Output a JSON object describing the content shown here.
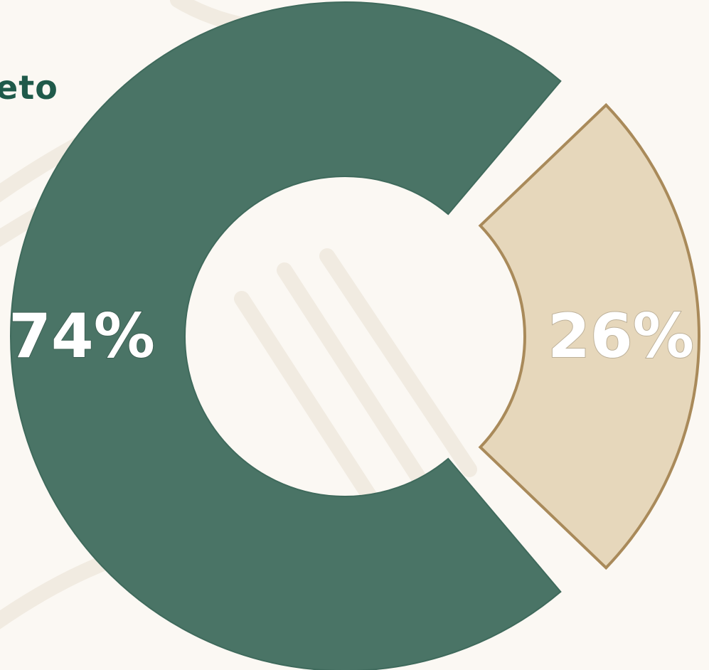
{
  "title_fragment": "eto",
  "colors": {
    "primary": "#4a7466",
    "secondary": "#e6d7bb",
    "secondary_border": "#a98a5a",
    "title": "#1f5a4a",
    "label": "#ffffff",
    "background": "#fbf8f3"
  },
  "chart_data": {
    "type": "pie",
    "variant": "donut",
    "title": "",
    "slices": [
      {
        "label": "74%",
        "value": 74,
        "color": "#4a7466"
      },
      {
        "label": "26%",
        "value": 26,
        "color": "#e6d7bb",
        "exploded": true
      }
    ],
    "legend": "none"
  }
}
